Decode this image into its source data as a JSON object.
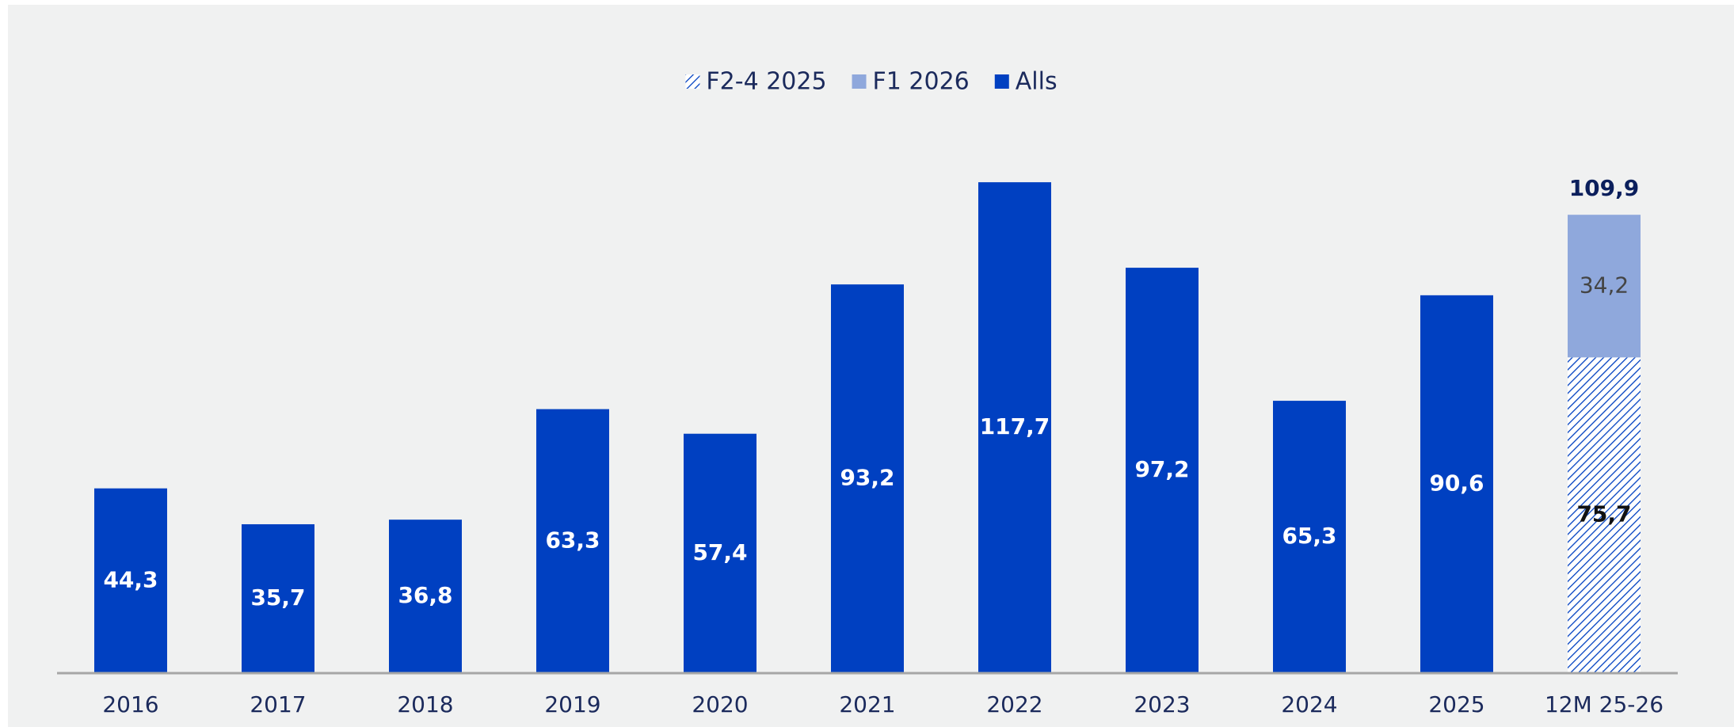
{
  "chart_data": {
    "type": "stacked_bar",
    "categories": [
      "2016",
      "2017",
      "2018",
      "2019",
      "2020",
      "2021",
      "2022",
      "2023",
      "2024",
      "2025",
      "12M 25-26"
    ],
    "series": [
      {
        "name": "F2-4 2025",
        "color": "#0040C1",
        "pattern": "hatch",
        "values": [
          null,
          null,
          null,
          null,
          null,
          null,
          null,
          null,
          null,
          null,
          75.7
        ],
        "value_labels": [
          null,
          null,
          null,
          null,
          null,
          null,
          null,
          null,
          null,
          null,
          "75,7"
        ]
      },
      {
        "name": "F1 2026",
        "color": "#8FA8DC",
        "values": [
          null,
          null,
          null,
          null,
          null,
          null,
          null,
          null,
          null,
          null,
          34.2
        ],
        "value_labels": [
          null,
          null,
          null,
          null,
          null,
          null,
          null,
          null,
          null,
          null,
          "34,2"
        ]
      },
      {
        "name": "Alls",
        "color": "#0040C1",
        "values": [
          44.3,
          35.7,
          36.8,
          63.3,
          57.4,
          93.2,
          117.7,
          97.2,
          65.3,
          90.6,
          null
        ],
        "value_labels": [
          "44,3",
          "35,7",
          "36,8",
          "63,3",
          "57,4",
          "93,2",
          "117,7",
          "97,2",
          "65,3",
          "90,6",
          null
        ]
      }
    ],
    "totals": [
      null,
      null,
      null,
      null,
      null,
      null,
      null,
      null,
      null,
      null,
      109.9
    ],
    "total_labels": [
      null,
      null,
      null,
      null,
      null,
      null,
      null,
      null,
      null,
      null,
      "109,9"
    ],
    "ylim": [
      0,
      120
    ],
    "legend": "top"
  }
}
